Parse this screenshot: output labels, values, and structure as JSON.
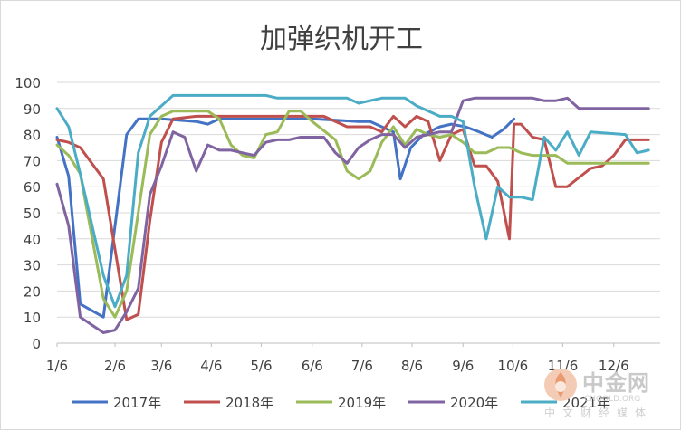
{
  "chart_data": {
    "type": "line",
    "title": "加弹织机开工",
    "xlabel": "",
    "ylabel": "",
    "ylim": [
      0,
      100
    ],
    "yticks": [
      0,
      10,
      20,
      30,
      40,
      50,
      60,
      70,
      80,
      90,
      100
    ],
    "x_unit": "week_index",
    "xlim": [
      0,
      52
    ],
    "x_tick_labels": [
      "1/6",
      "2/6",
      "3/6",
      "4/6",
      "5/6",
      "6/6",
      "7/6",
      "8/6",
      "9/6",
      "10/6",
      "11/6",
      "12/6"
    ],
    "x_tick_positions": [
      0,
      5,
      9,
      13.3,
      17.6,
      22,
      26.3,
      30.6,
      35,
      39.3,
      43.6,
      48
    ],
    "grid": true,
    "legend": "bottom",
    "series": [
      {
        "name": "2017年",
        "color": "#4472c4",
        "points": [
          [
            0,
            79
          ],
          [
            1,
            64
          ],
          [
            2,
            15
          ],
          [
            4,
            10
          ],
          [
            6,
            80
          ],
          [
            7,
            86
          ],
          [
            9,
            86
          ],
          [
            12,
            85
          ],
          [
            13,
            84
          ],
          [
            14,
            86
          ],
          [
            17,
            86
          ],
          [
            22,
            86
          ],
          [
            26,
            85
          ],
          [
            27,
            85
          ],
          [
            28,
            83
          ],
          [
            29,
            81
          ],
          [
            29.6,
            63
          ],
          [
            30.5,
            75
          ],
          [
            31.6,
            80
          ],
          [
            33,
            83
          ],
          [
            34,
            84
          ],
          [
            35.2,
            83
          ],
          [
            36.4,
            81
          ],
          [
            37.5,
            79
          ],
          [
            38.5,
            82
          ],
          [
            39.4,
            86
          ]
        ]
      },
      {
        "name": "2018年",
        "color": "#c0504d",
        "points": [
          [
            0,
            78
          ],
          [
            1,
            77
          ],
          [
            2,
            75
          ],
          [
            4,
            63
          ],
          [
            6,
            9
          ],
          [
            7,
            11
          ],
          [
            8,
            47
          ],
          [
            9,
            77
          ],
          [
            10,
            86
          ],
          [
            12,
            87
          ],
          [
            17,
            87
          ],
          [
            23,
            87
          ],
          [
            25,
            83
          ],
          [
            26,
            83
          ],
          [
            27,
            83
          ],
          [
            28,
            81
          ],
          [
            29,
            87
          ],
          [
            30,
            83
          ],
          [
            31,
            87
          ],
          [
            32,
            85
          ],
          [
            33,
            70
          ],
          [
            34,
            80
          ],
          [
            35,
            82
          ],
          [
            36,
            68
          ],
          [
            37,
            68
          ],
          [
            38,
            62
          ],
          [
            39,
            40
          ],
          [
            39.4,
            84
          ],
          [
            40,
            84
          ],
          [
            41,
            79
          ],
          [
            42,
            78
          ],
          [
            43,
            60
          ],
          [
            44,
            60
          ],
          [
            46,
            67
          ],
          [
            47,
            68
          ],
          [
            48,
            72
          ],
          [
            49,
            78
          ],
          [
            51,
            78
          ]
        ]
      },
      {
        "name": "2019年",
        "color": "#9bbb59",
        "points": [
          [
            0,
            76
          ],
          [
            1,
            72
          ],
          [
            2,
            65
          ],
          [
            4,
            17
          ],
          [
            5,
            10
          ],
          [
            6,
            20
          ],
          [
            8,
            80
          ],
          [
            9,
            87
          ],
          [
            10,
            89
          ],
          [
            13,
            89
          ],
          [
            14,
            86
          ],
          [
            15,
            76
          ],
          [
            16,
            72
          ],
          [
            17,
            71
          ],
          [
            18,
            80
          ],
          [
            19,
            81
          ],
          [
            20,
            89
          ],
          [
            21,
            89
          ],
          [
            22,
            85
          ],
          [
            24,
            78
          ],
          [
            25,
            66
          ],
          [
            26,
            63
          ],
          [
            27,
            66
          ],
          [
            28,
            77
          ],
          [
            29,
            83
          ],
          [
            30,
            76
          ],
          [
            31,
            82
          ],
          [
            32,
            80
          ],
          [
            33,
            79
          ],
          [
            34,
            80
          ],
          [
            35,
            77
          ],
          [
            36,
            73
          ],
          [
            37,
            73
          ],
          [
            38,
            75
          ],
          [
            39,
            75
          ],
          [
            40,
            73
          ],
          [
            41,
            72
          ],
          [
            42,
            72
          ],
          [
            43,
            72
          ],
          [
            44,
            69
          ],
          [
            51,
            69
          ]
        ]
      },
      {
        "name": "2020年",
        "color": "#8064a2",
        "points": [
          [
            0,
            61
          ],
          [
            1,
            45
          ],
          [
            2,
            10
          ],
          [
            4,
            4
          ],
          [
            5,
            5
          ],
          [
            6,
            12
          ],
          [
            7,
            21
          ],
          [
            8,
            57
          ],
          [
            9,
            68
          ],
          [
            10,
            81
          ],
          [
            11,
            79
          ],
          [
            12,
            66
          ],
          [
            13,
            76
          ],
          [
            14,
            74
          ],
          [
            15,
            74
          ],
          [
            16,
            73
          ],
          [
            17,
            72
          ],
          [
            18,
            77
          ],
          [
            19,
            78
          ],
          [
            20,
            78
          ],
          [
            21,
            79
          ],
          [
            23,
            79
          ],
          [
            24,
            73
          ],
          [
            25,
            69
          ],
          [
            26,
            75
          ],
          [
            27,
            78
          ],
          [
            28,
            80
          ],
          [
            29,
            80
          ],
          [
            30,
            75
          ],
          [
            31,
            79
          ],
          [
            32,
            80
          ],
          [
            33,
            81
          ],
          [
            34,
            81
          ],
          [
            35,
            93
          ],
          [
            36,
            94
          ],
          [
            41,
            94
          ],
          [
            42,
            93
          ],
          [
            43,
            93
          ],
          [
            44,
            94
          ],
          [
            45,
            90
          ],
          [
            51,
            90
          ]
        ]
      },
      {
        "name": "2021年",
        "color": "#4bacc6",
        "points": [
          [
            0,
            90
          ],
          [
            1,
            83
          ],
          [
            2,
            65
          ],
          [
            4,
            26
          ],
          [
            5,
            14
          ],
          [
            6,
            26
          ],
          [
            7,
            73
          ],
          [
            8,
            87
          ],
          [
            9,
            91
          ],
          [
            10,
            95
          ],
          [
            18,
            95
          ],
          [
            19,
            94
          ],
          [
            23,
            94
          ],
          [
            25,
            94
          ],
          [
            26,
            92
          ],
          [
            28,
            94
          ],
          [
            30,
            94
          ],
          [
            31,
            91
          ],
          [
            33,
            87
          ],
          [
            34,
            87
          ],
          [
            35,
            85
          ],
          [
            36,
            60
          ],
          [
            37,
            40
          ],
          [
            38,
            60
          ],
          [
            39,
            56
          ],
          [
            40,
            56
          ],
          [
            41,
            55
          ],
          [
            42,
            79
          ],
          [
            43,
            74
          ],
          [
            44,
            81
          ],
          [
            45,
            72
          ],
          [
            46,
            81
          ],
          [
            49,
            80
          ],
          [
            50,
            73
          ],
          [
            51,
            74
          ]
        ]
      }
    ]
  },
  "watermark": {
    "name": "中金网",
    "domain": "CNGOLD.ORG",
    "sub": "中文财经媒体"
  }
}
